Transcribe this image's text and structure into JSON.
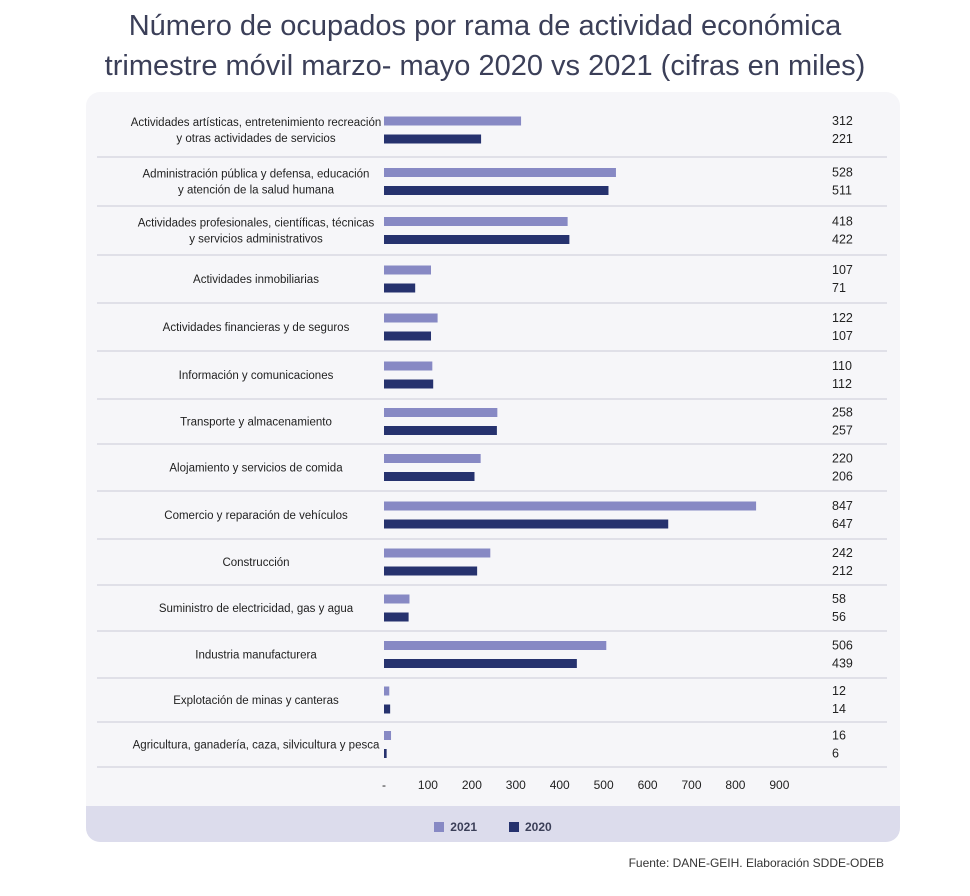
{
  "title_lines": [
    "Número de ocupados por rama de actividad económica",
    "trimestre móvil marzo- mayo 2020 vs 2021 (cifras en miles)"
  ],
  "colors": {
    "y2021": "#8789c4",
    "y2020": "#26326e"
  },
  "legend": {
    "series_2021": "2021",
    "series_2020": "2020"
  },
  "source": "Fuente: DANE-GEIH. Elaboración SDDE-ODEB",
  "chart_data": {
    "type": "bar",
    "orientation": "horizontal",
    "title": "Número de ocupados por rama de actividad económica trimestre móvil marzo- mayo 2020 vs 2021 (cifras en miles)",
    "categories": [
      [
        "Actividades artísticas, entretenimiento recreación",
        "y otras actividades de servicios"
      ],
      [
        "Administración pública y defensa, educación",
        "y atención de la salud humana"
      ],
      [
        "Actividades profesionales, científicas, técnicas",
        "y servicios administrativos"
      ],
      [
        "Actividades inmobiliarias"
      ],
      [
        "Actividades financieras y de seguros"
      ],
      [
        "Información y comunicaciones"
      ],
      [
        "Transporte y almacenamiento"
      ],
      [
        "Alojamiento y servicios de comida"
      ],
      [
        "Comercio y reparación de vehículos"
      ],
      [
        "Construcción"
      ],
      [
        "Suministro de electricidad, gas y agua"
      ],
      [
        "Industria manufacturera"
      ],
      [
        "Explotación de minas y canteras"
      ],
      [
        "Agricultura, ganadería, caza, silvicultura y pesca"
      ]
    ],
    "series": [
      {
        "name": "2021",
        "values": [
          312,
          528,
          418,
          107,
          122,
          110,
          258,
          220,
          847,
          242,
          58,
          506,
          12,
          16
        ]
      },
      {
        "name": "2020",
        "values": [
          221,
          511,
          422,
          71,
          107,
          112,
          257,
          206,
          647,
          212,
          56,
          439,
          14,
          6
        ]
      }
    ],
    "xlim": [
      0,
      900
    ],
    "xticks": [
      "-",
      "100",
      "200",
      "300",
      "400",
      "500",
      "600",
      "700",
      "800",
      "900"
    ],
    "legend_position": "bottom-center"
  }
}
